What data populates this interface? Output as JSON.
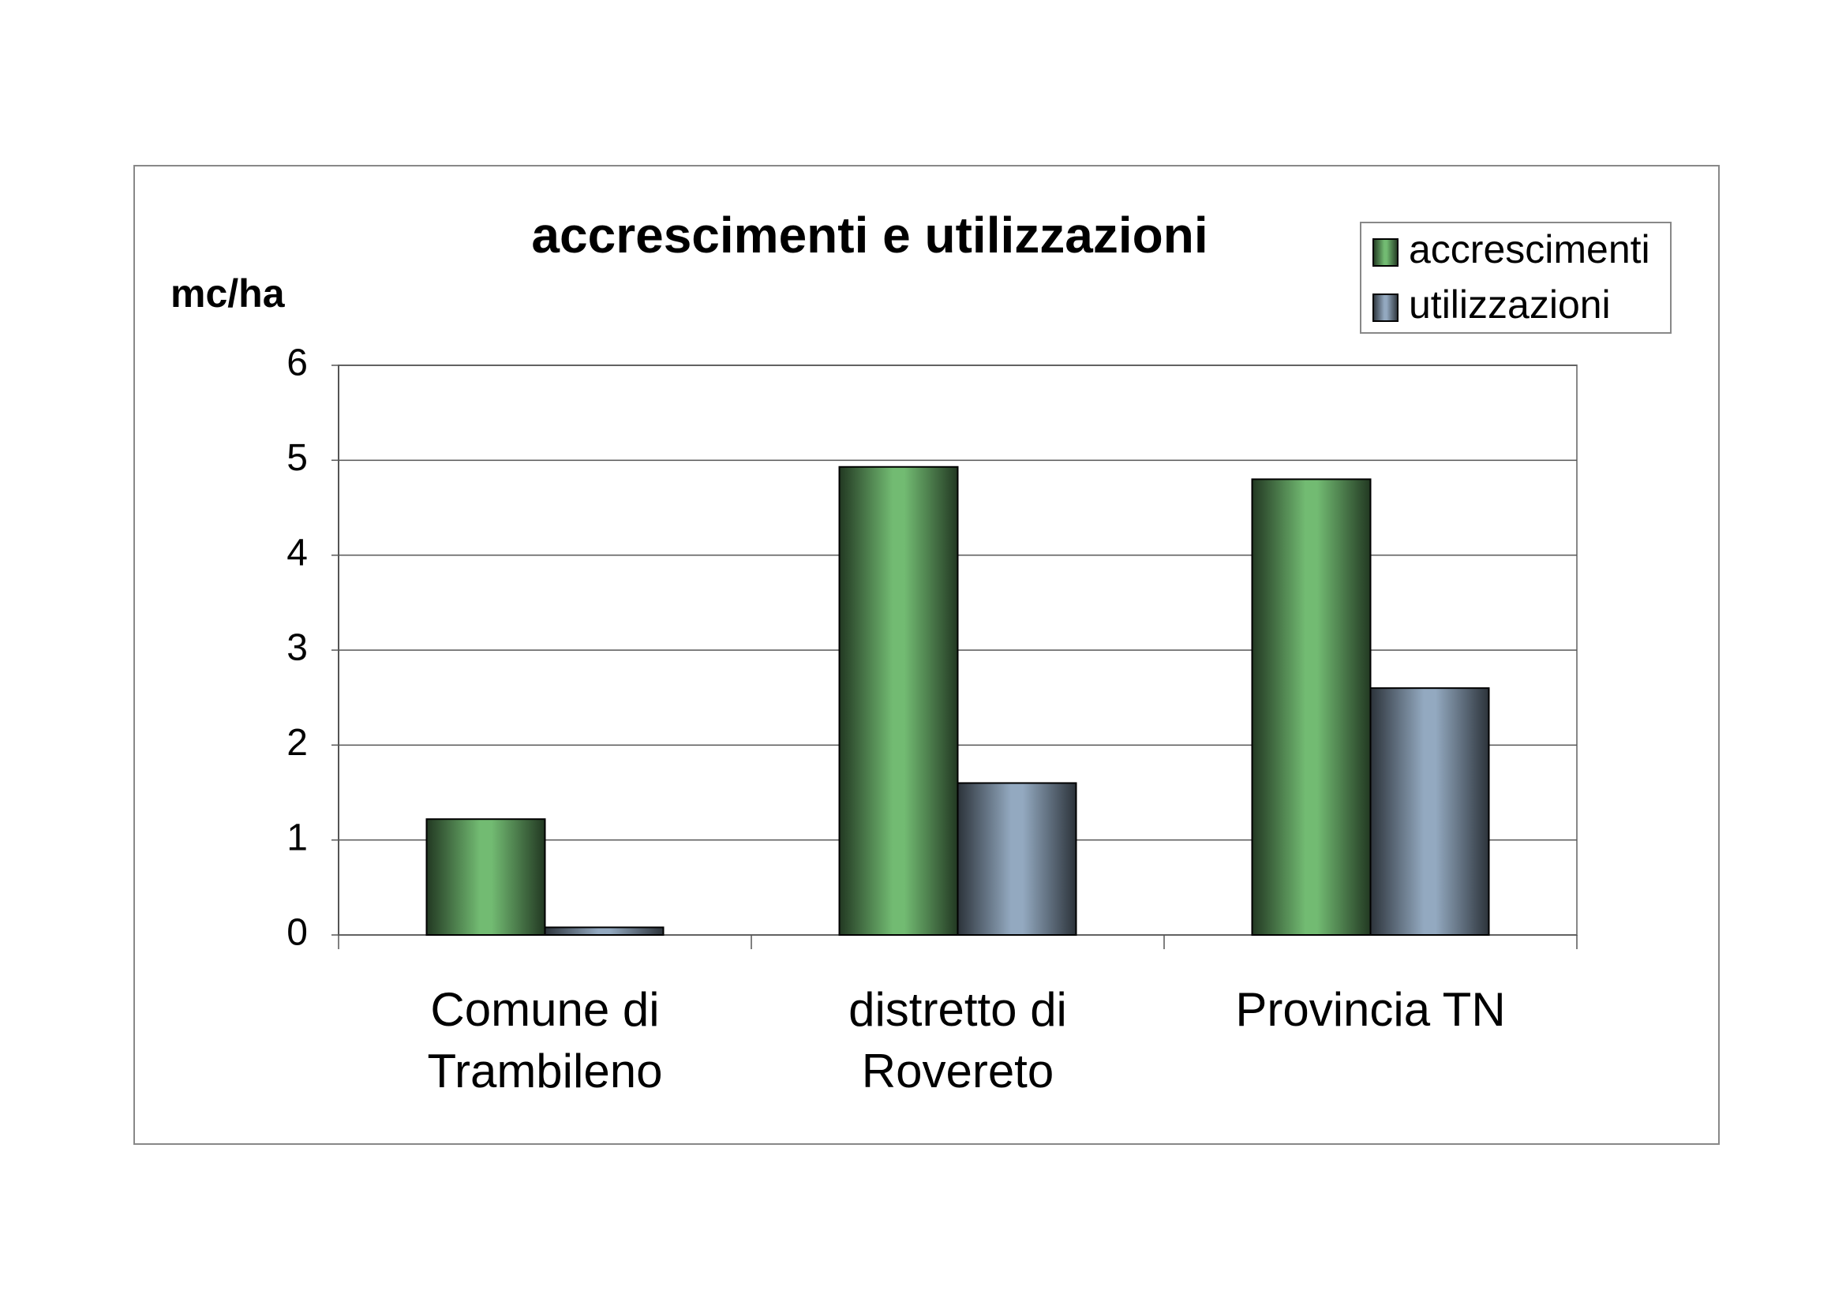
{
  "chart_data": {
    "type": "bar",
    "title": "accrescimenti e utilizzazioni",
    "y_label": "mc/ha",
    "categories": [
      "Comune di\nTrambileno",
      "distretto di\nRovereto",
      "Provincia TN"
    ],
    "series": [
      {
        "name": "accrescimenti",
        "color": "#72bb72",
        "values": [
          1.22,
          4.93,
          4.8
        ]
      },
      {
        "name": "utilizzazioni",
        "color": "#93a9c0",
        "values": [
          0.08,
          1.6,
          2.6
        ]
      }
    ],
    "ylim": [
      0,
      6
    ],
    "yticks": [
      0,
      1,
      2,
      3,
      4,
      5,
      6
    ],
    "grid": true,
    "legend": "top-right"
  }
}
